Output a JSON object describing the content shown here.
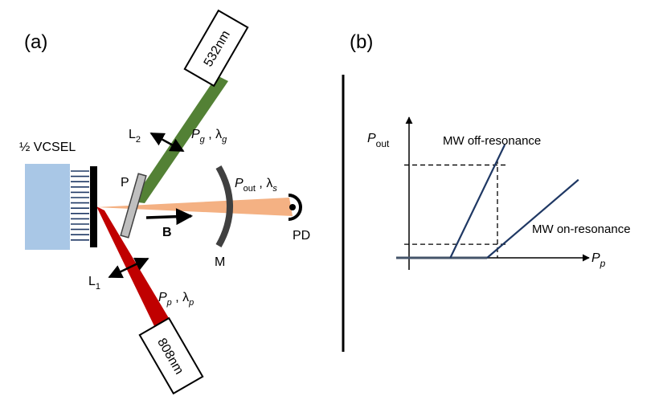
{
  "panel_a": {
    "label": "(a)",
    "vcsel_label": "½ VCSEL",
    "green_laser_label": "532nm",
    "red_laser_label": "808nm",
    "lens_2": {
      "main": "L",
      "sub": "2"
    },
    "lens_1": {
      "main": "L",
      "sub": "1"
    },
    "polarizer_label": "P",
    "field_label": "B",
    "mirror_label": "M",
    "detector_label": "PD",
    "green_beam": {
      "power": "P",
      "power_sub": "g",
      "sep": " , ",
      "lambda": "λ",
      "lambda_sub": "g"
    },
    "pump_beam": {
      "power": "P",
      "power_sub": "p",
      "sep": " , ",
      "lambda": "λ",
      "lambda_sub": "p"
    },
    "output_beam": {
      "power": "P",
      "power_sub": "out",
      "sep": " , ",
      "lambda": "λ",
      "lambda_sub": "s"
    },
    "colors": {
      "vcsel_block": "#a9c7e6",
      "green_beam": "#538135",
      "red_beam": "#c00000",
      "output_beam": "#f4b183",
      "mirror": "#404040",
      "polarizer": "#bfbfbf"
    }
  },
  "panel_b": {
    "label": "(b)",
    "y_axis": {
      "main": "P",
      "sub": "out"
    },
    "x_axis": {
      "main": "P",
      "sub": "p"
    },
    "curve_off_label": "MW off-resonance",
    "curve_on_label": "MW on-resonance",
    "colors": {
      "curve": "#1f3864",
      "baseline": "#44546a"
    }
  },
  "chart_data": {
    "type": "line",
    "xlabel": "Pp",
    "ylabel": "Pout",
    "series": [
      {
        "name": "MW off-resonance",
        "points": [
          [
            0.0,
            0.0
          ],
          [
            0.28,
            0.0
          ],
          [
            0.65,
            1.0
          ]
        ]
      },
      {
        "name": "MW on-resonance",
        "points": [
          [
            0.0,
            0.0
          ],
          [
            0.53,
            0.0
          ],
          [
            1.15,
            0.69
          ]
        ]
      }
    ],
    "dashed_guides": {
      "x_pump": 0.6,
      "y_levels": [
        0.12,
        0.82
      ]
    },
    "xlim": [
      0,
      1.2
    ],
    "ylim": [
      0,
      1.1
    ],
    "grid": false
  }
}
